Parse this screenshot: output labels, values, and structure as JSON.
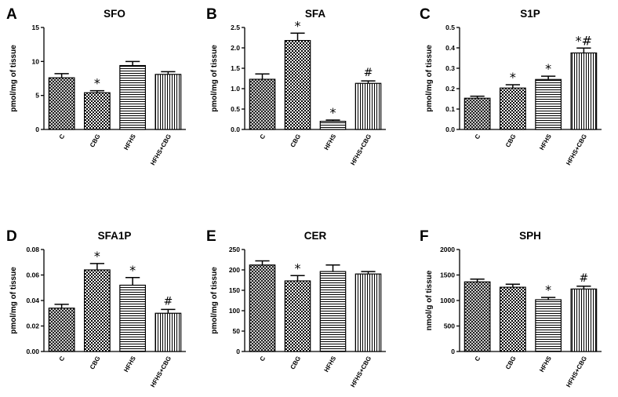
{
  "patterns": [
    "diamond",
    "checker",
    "hlines",
    "vlines"
  ],
  "chart_data": [
    {
      "type": "bar",
      "letter": "A",
      "title": "SFO",
      "ylabel": "pmol/mg of tissue",
      "categories": [
        "C",
        "CBG",
        "HFHS",
        "HFHS+CBG"
      ],
      "values": [
        7.6,
        5.4,
        9.4,
        8.1
      ],
      "errors": [
        0.6,
        0.3,
        0.6,
        0.4
      ],
      "ylim": [
        0,
        15
      ],
      "yticks": [
        "0",
        "5",
        "10",
        "15"
      ],
      "annotations": [
        "",
        "*",
        "",
        ""
      ]
    },
    {
      "type": "bar",
      "letter": "B",
      "title": "SFA",
      "ylabel": "pmol/mg of tissue",
      "categories": [
        "C",
        "CBG",
        "HFHS",
        "HFHS+CBG"
      ],
      "values": [
        1.23,
        2.18,
        0.2,
        1.13
      ],
      "errors": [
        0.13,
        0.18,
        0.03,
        0.06
      ],
      "ylim": [
        0,
        2.5
      ],
      "yticks": [
        "0.0",
        "0.5",
        "1.0",
        "1.5",
        "2.0",
        "2.5"
      ],
      "annotations": [
        "",
        "*",
        "*",
        "#"
      ]
    },
    {
      "type": "bar",
      "letter": "C",
      "title": "S1P",
      "ylabel": "pmol/mg of tissue",
      "categories": [
        "C",
        "CBG",
        "HFHS",
        "HFHS+CBG"
      ],
      "values": [
        0.153,
        0.203,
        0.245,
        0.375
      ],
      "errors": [
        0.01,
        0.016,
        0.016,
        0.024
      ],
      "ylim": [
        0,
        0.5
      ],
      "yticks": [
        "0.0",
        "0.1",
        "0.2",
        "0.3",
        "0.4",
        "0.5"
      ],
      "annotations": [
        "",
        "*",
        "*",
        "*#"
      ]
    },
    {
      "type": "bar",
      "letter": "D",
      "title": "SFA1P",
      "ylabel": "pmol/mg of tissue",
      "categories": [
        "C",
        "CBG",
        "HFHS",
        "HFHS+CBG"
      ],
      "values": [
        0.034,
        0.064,
        0.052,
        0.03
      ],
      "errors": [
        0.003,
        0.005,
        0.006,
        0.003
      ],
      "ylim": [
        0,
        0.08
      ],
      "yticks": [
        "0.00",
        "0.02",
        "0.04",
        "0.06",
        "0.08"
      ],
      "annotations": [
        "",
        "*",
        "*",
        "#"
      ]
    },
    {
      "type": "bar",
      "letter": "E",
      "title": "CER",
      "ylabel": "pmol/mg of tissue",
      "categories": [
        "C",
        "CBG",
        "HFHS",
        "HFHS+CBG"
      ],
      "values": [
        212,
        173,
        196,
        190
      ],
      "errors": [
        10,
        13,
        16,
        6
      ],
      "ylim": [
        0,
        250
      ],
      "yticks": [
        "0",
        "50",
        "100",
        "150",
        "200",
        "250"
      ],
      "annotations": [
        "",
        "*",
        "",
        ""
      ]
    },
    {
      "type": "bar",
      "letter": "F",
      "title": "SPH",
      "ylabel": "nmol/g of tissue",
      "categories": [
        "C",
        "CBG",
        "HFHS",
        "HFHS+CBG"
      ],
      "values": [
        1365,
        1260,
        1015,
        1225
      ],
      "errors": [
        55,
        60,
        45,
        55
      ],
      "ylim": [
        0,
        2000
      ],
      "yticks": [
        "0",
        "500",
        "1000",
        "1500",
        "2000"
      ],
      "annotations": [
        "",
        "",
        "*",
        "#"
      ]
    }
  ]
}
